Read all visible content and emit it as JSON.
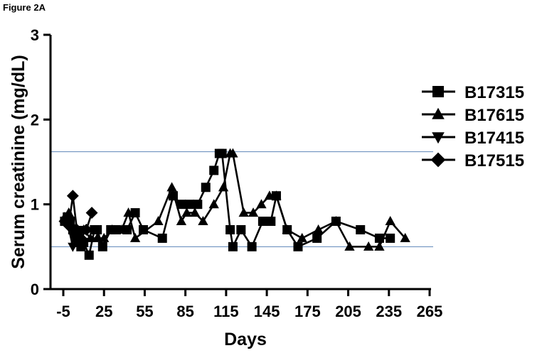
{
  "figure_label": "Figure 2A",
  "chart_data": {
    "type": "line",
    "title": "",
    "xlabel": "Days",
    "ylabel": "Serum creatinine (mg/dL)",
    "xlim": [
      -5,
      265
    ],
    "ylim": [
      0,
      3
    ],
    "x_ticks": [
      -5,
      25,
      55,
      85,
      115,
      145,
      175,
      205,
      235,
      265
    ],
    "x_tick_labels": [
      "-5",
      "25",
      "55",
      "85",
      "115",
      "145",
      "175",
      "205",
      "235",
      "265"
    ],
    "y_ticks": [
      0,
      1,
      2,
      3
    ],
    "y_tick_labels": [
      "0",
      "1",
      "2",
      "3"
    ],
    "reference_lines": [
      {
        "y": 1.62,
        "color": "#5b85b8"
      },
      {
        "y": 0.5,
        "color": "#5b85b8"
      }
    ],
    "legend_position": "right",
    "grid": false,
    "series": [
      {
        "name": "B17315",
        "marker": "square",
        "x": [
          -4,
          -2,
          0,
          2,
          4,
          6,
          8,
          10,
          14,
          18,
          20,
          24,
          30,
          34,
          42,
          48,
          54,
          68,
          76,
          82,
          88,
          94,
          100,
          106,
          110,
          112,
          118,
          120,
          126,
          134,
          142,
          148,
          152,
          160,
          168,
          182,
          196,
          214,
          228,
          236
        ],
        "y": [
          0.8,
          0.85,
          0.8,
          0.7,
          0.6,
          0.55,
          0.5,
          0.55,
          0.4,
          0.7,
          0.7,
          0.5,
          0.7,
          0.7,
          0.7,
          0.9,
          0.7,
          0.6,
          1.1,
          1.0,
          1.0,
          1.0,
          1.2,
          1.4,
          1.6,
          1.6,
          0.7,
          0.5,
          0.7,
          0.5,
          0.8,
          0.8,
          1.1,
          0.7,
          0.5,
          0.6,
          0.8,
          0.7,
          0.6,
          0.6
        ]
      },
      {
        "name": "B17615",
        "marker": "triangle-up",
        "x": [
          -4,
          -1,
          2,
          6,
          10,
          15,
          20,
          25,
          31,
          38,
          43,
          48,
          65,
          75,
          82,
          86,
          92,
          98,
          106,
          113,
          118,
          120,
          128,
          135,
          141,
          147,
          152,
          160,
          171,
          183,
          196,
          206,
          220,
          228,
          236,
          247
        ],
        "y": [
          0.85,
          0.9,
          0.75,
          0.6,
          0.7,
          0.6,
          0.6,
          0.6,
          0.7,
          0.7,
          0.9,
          0.6,
          0.8,
          1.2,
          0.8,
          0.9,
          0.9,
          0.8,
          1.0,
          1.2,
          1.6,
          1.6,
          0.9,
          0.9,
          1.0,
          1.1,
          1.1,
          0.7,
          0.6,
          0.7,
          0.8,
          0.5,
          0.5,
          0.5,
          0.8,
          0.6
        ]
      },
      {
        "name": "B17415",
        "marker": "triangle-down",
        "x": [
          -2,
          2,
          6,
          10
        ],
        "y": [
          0.8,
          0.5,
          0.6,
          0.7
        ]
      },
      {
        "name": "B17515",
        "marker": "diamond",
        "x": [
          -4,
          -1,
          2,
          5,
          8,
          12,
          16
        ],
        "y": [
          0.8,
          0.75,
          1.1,
          0.7,
          0.6,
          0.7,
          0.9
        ]
      }
    ]
  }
}
